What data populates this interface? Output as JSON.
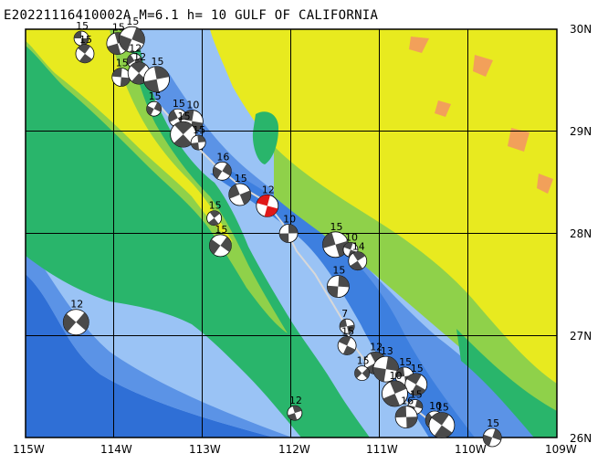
{
  "title": "E20221116410002A M=6.1 h= 10 GULF OF CALIFORNIA",
  "lon_labels": [
    "115W",
    "114W",
    "113W",
    "112W",
    "111W",
    "110W",
    "109W"
  ],
  "lat_labels": [
    "30N",
    "29N",
    "28N",
    "27N",
    "26N"
  ],
  "lon_range": [
    -115,
    -109
  ],
  "lat_range": [
    26,
    30
  ],
  "colors": {
    "deep_ocean": "#2f6fd6",
    "mid_ocean": "#5b93e6",
    "shallow_ocean": "#9ac3f5",
    "lowland": "#29b56b",
    "upland": "#8fd14a",
    "highland": "#e8ea1f",
    "peaks": "#f2a05a",
    "mechanism_dark": "#4a4a4a",
    "highlight": "#e01818"
  },
  "mechanisms": [
    {
      "lon": -114.37,
      "lat": 29.91,
      "depth": "15"
    },
    {
      "lon": -114.33,
      "lat": 29.76,
      "depth": "15"
    },
    {
      "lon": -113.96,
      "lat": 29.86,
      "depth": "15"
    },
    {
      "lon": -113.8,
      "lat": 29.9,
      "depth": "15"
    },
    {
      "lon": -113.77,
      "lat": 29.69,
      "depth": "12"
    },
    {
      "lon": -113.92,
      "lat": 29.53,
      "depth": "15"
    },
    {
      "lon": -113.72,
      "lat": 29.57,
      "depth": "12"
    },
    {
      "lon": -113.52,
      "lat": 29.51,
      "depth": "15"
    },
    {
      "lon": -113.55,
      "lat": 29.22,
      "depth": "15"
    },
    {
      "lon": -113.28,
      "lat": 29.13,
      "depth": "15"
    },
    {
      "lon": -113.12,
      "lat": 29.1,
      "depth": "10"
    },
    {
      "lon": -113.22,
      "lat": 28.97,
      "depth": "15"
    },
    {
      "lon": -113.05,
      "lat": 28.89,
      "depth": "15"
    },
    {
      "lon": -112.78,
      "lat": 28.61,
      "depth": "16"
    },
    {
      "lon": -112.58,
      "lat": 28.38,
      "depth": "15"
    },
    {
      "lon": -112.27,
      "lat": 28.27,
      "depth": "12",
      "highlight": true
    },
    {
      "lon": -112.87,
      "lat": 28.15,
      "depth": "15"
    },
    {
      "lon": -112.03,
      "lat": 28.0,
      "depth": "10"
    },
    {
      "lon": -112.8,
      "lat": 27.88,
      "depth": "15"
    },
    {
      "lon": -111.5,
      "lat": 27.89,
      "depth": "15"
    },
    {
      "lon": -111.33,
      "lat": 27.84,
      "depth": "10"
    },
    {
      "lon": -111.25,
      "lat": 27.73,
      "depth": "14"
    },
    {
      "lon": -111.47,
      "lat": 27.48,
      "depth": "15"
    },
    {
      "lon": -114.43,
      "lat": 27.13,
      "depth": "12"
    },
    {
      "lon": -111.37,
      "lat": 27.09,
      "depth": "7"
    },
    {
      "lon": -111.37,
      "lat": 26.9,
      "depth": "15"
    },
    {
      "lon": -111.05,
      "lat": 26.73,
      "depth": "12"
    },
    {
      "lon": -110.93,
      "lat": 26.67,
      "depth": "13"
    },
    {
      "lon": -111.2,
      "lat": 26.63,
      "depth": "15"
    },
    {
      "lon": -110.72,
      "lat": 26.6,
      "depth": "15"
    },
    {
      "lon": -110.59,
      "lat": 26.52,
      "depth": "15"
    },
    {
      "lon": -110.83,
      "lat": 26.43,
      "depth": "10"
    },
    {
      "lon": -110.6,
      "lat": 26.3,
      "depth": "15"
    },
    {
      "lon": -110.38,
      "lat": 26.17,
      "depth": "10"
    },
    {
      "lon": -110.7,
      "lat": 26.2,
      "depth": "16"
    },
    {
      "lon": -110.3,
      "lat": 26.12,
      "depth": "15"
    },
    {
      "lon": -111.96,
      "lat": 26.24,
      "depth": "12"
    },
    {
      "lon": -109.73,
      "lat": 26.0,
      "depth": "15"
    }
  ]
}
